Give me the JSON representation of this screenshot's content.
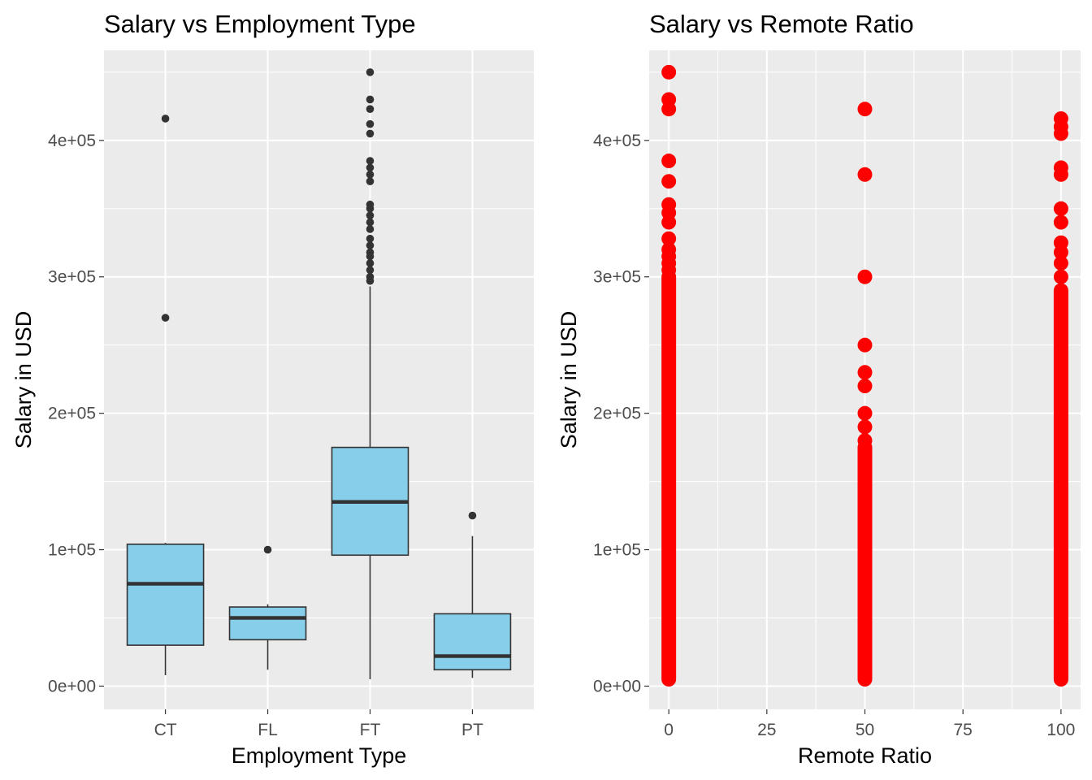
{
  "chart_data": [
    {
      "type": "box",
      "title": "Salary vs Employment Type",
      "xlabel": "Employment Type",
      "ylabel": "Salary in USD",
      "categories": [
        "CT",
        "FL",
        "FT",
        "PT"
      ],
      "ylim": [
        -17000,
        466000
      ],
      "y_ticks": [
        0,
        100000,
        200000,
        300000,
        400000
      ],
      "y_tick_labels": [
        "0e+00",
        "1e+05",
        "2e+05",
        "3e+05",
        "4e+05"
      ],
      "box_fill": "#87CEEB",
      "boxes": [
        {
          "category": "CT",
          "min": 8000,
          "q1": 30000,
          "median": 75000,
          "q3": 104000,
          "max": 105000,
          "outliers": [
            416000,
            270000
          ]
        },
        {
          "category": "FL",
          "min": 12000,
          "q1": 34000,
          "median": 50000,
          "q3": 58000,
          "max": 60000,
          "outliers": [
            100000
          ]
        },
        {
          "category": "FT",
          "min": 5000,
          "q1": 96000,
          "median": 135000,
          "q3": 175000,
          "max": 293000,
          "outliers": [
            450000,
            430000,
            423000,
            412000,
            405000,
            385000,
            380000,
            375000,
            370000,
            353000,
            350000,
            345000,
            340000,
            335000,
            328000,
            323000,
            318000,
            315000,
            310000,
            305000,
            300000,
            297000
          ]
        },
        {
          "category": "PT",
          "min": 6000,
          "q1": 12000,
          "median": 22000,
          "q3": 53000,
          "max": 110000,
          "outliers": [
            125000
          ]
        }
      ],
      "grid": true
    },
    {
      "type": "scatter",
      "title": "Salary vs Remote Ratio",
      "xlabel": "Remote Ratio",
      "ylabel": "Salary in USD",
      "xlim": [
        -5,
        105
      ],
      "x_ticks": [
        0,
        25,
        50,
        75,
        100
      ],
      "x_tick_labels": [
        "0",
        "25",
        "50",
        "75",
        "100"
      ],
      "ylim": [
        -17000,
        466000
      ],
      "y_ticks": [
        0,
        100000,
        200000,
        300000,
        400000
      ],
      "y_tick_labels": [
        "0e+00",
        "1e+05",
        "2e+05",
        "3e+05",
        "4e+05"
      ],
      "point_color": "#FF0000",
      "series": [
        {
          "x": 0,
          "solid_range": [
            5000,
            300000
          ],
          "points": [
            450000,
            430000,
            423000,
            385000,
            370000,
            353000,
            347000,
            340000,
            328000,
            320000,
            315000,
            310000,
            305000
          ]
        },
        {
          "x": 50,
          "solid_range": [
            5000,
            175000
          ],
          "points": [
            423000,
            375000,
            300000,
            250000,
            230000,
            220000,
            200000,
            190000,
            180000
          ]
        },
        {
          "x": 100,
          "solid_range": [
            5000,
            290000
          ],
          "points": [
            416000,
            410000,
            405000,
            380000,
            375000,
            350000,
            340000,
            325000,
            318000,
            310000,
            300000
          ]
        }
      ],
      "grid": true
    }
  ]
}
